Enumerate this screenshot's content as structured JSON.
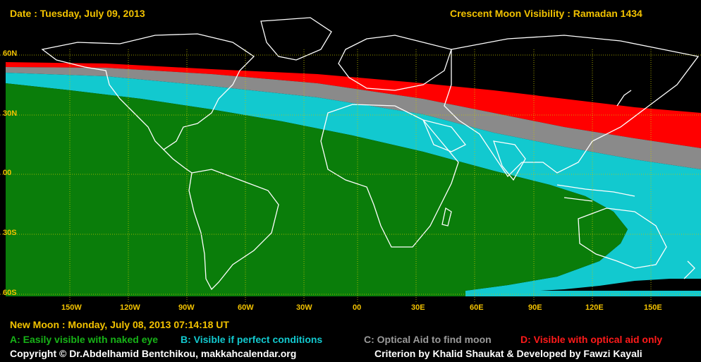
{
  "header": {
    "date": "Date : Tuesday, July 09, 2013",
    "title": "Crescent Moon Visibility : Ramadan  1434"
  },
  "map": {
    "lat_labels": [
      "60N",
      "30N",
      "00",
      "30S",
      "60S"
    ],
    "lon_labels": [
      "150W",
      "120W",
      "90W",
      "60W",
      "30W",
      "00",
      "30E",
      "60E",
      "90E",
      "120E",
      "150E"
    ],
    "zone_colors": {
      "A": "#0a7d0a",
      "B": "#12c9cf",
      "C": "#8a8a8a",
      "D": "#ff0000",
      "ocean": "#000000",
      "grid": "#c8c800"
    }
  },
  "footer": {
    "new_moon": "New Moon : Monday, July 08, 2013  07:14:18  UT",
    "legend": [
      {
        "text": "A: Easily visible with naked eye",
        "color": "#17b317"
      },
      {
        "text": "B: Visible if perfect conditions",
        "color": "#12c9cf"
      },
      {
        "text": "C: Optical Aid to find moon",
        "color": "#9a9a9a"
      },
      {
        "text": "D: Visible with optical aid only",
        "color": "#ff1a1a"
      }
    ],
    "copyright": "Copyright © Dr.Abdelhamid Bentchikou, makkahcalendar.org",
    "criterion": "Criterion by Khalid Shaukat & Developed by Fawzi Kayali"
  }
}
